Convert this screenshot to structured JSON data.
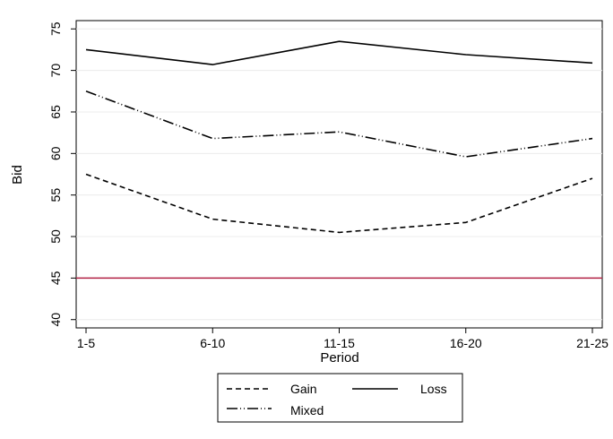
{
  "chart_data": {
    "type": "line",
    "categories": [
      "1-5",
      "6-10",
      "11-15",
      "16-20",
      "21-25"
    ],
    "series": [
      {
        "name": "Gain",
        "values": [
          57.5,
          52.1,
          50.5,
          51.7,
          57.0
        ],
        "dash": "dashed"
      },
      {
        "name": "Loss",
        "values": [
          72.5,
          70.7,
          73.5,
          71.9,
          70.9
        ],
        "dash": "solid"
      },
      {
        "name": "Mixed",
        "values": [
          67.5,
          61.8,
          62.6,
          59.6,
          61.8
        ],
        "dash": "dash-dot"
      }
    ],
    "reference_line": {
      "y": 45,
      "color": "#b22245"
    },
    "xlabel": "Period",
    "ylabel": "Bid",
    "ylim": [
      39,
      76
    ],
    "yticks": [
      40,
      45,
      50,
      55,
      60,
      65,
      70,
      75
    ],
    "grid": true,
    "legend_position": "bottom-center"
  }
}
